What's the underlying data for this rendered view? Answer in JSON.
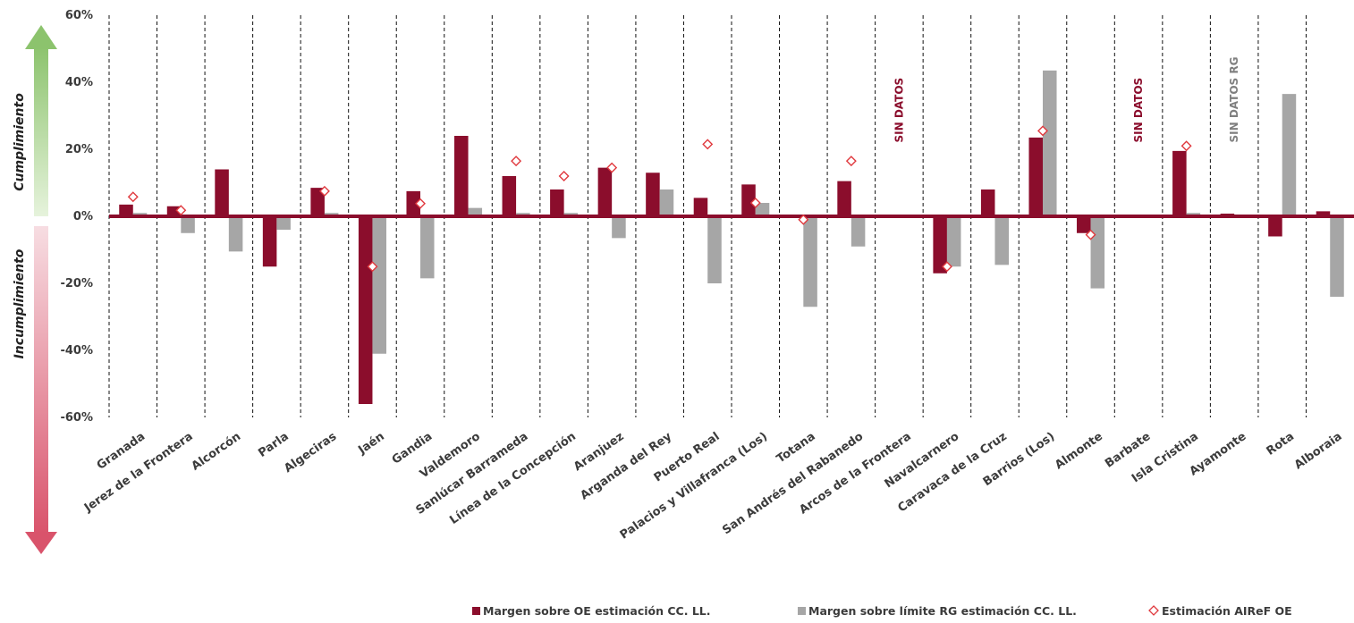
{
  "chart_data": {
    "type": "bar",
    "ylim": [
      -60,
      60
    ],
    "ytick_values": [
      -60,
      -40,
      -20,
      0,
      20,
      40,
      60
    ],
    "ytick_labels": [
      "-60%",
      "-40%",
      "-20%",
      "0%",
      "20%",
      "40%",
      "60%"
    ],
    "grid": "vertical dashed separators between categories",
    "legend_position": "bottom-right",
    "side_labels": {
      "positive": "Cumplimiento",
      "negative": "Incumplimiento"
    },
    "colors": {
      "oe": "#8b0d2c",
      "rg": "#a6a6a6",
      "airef": "#e0393e",
      "zero_line": "#8b0d2c",
      "arrow_up": "#8cc36d",
      "arrow_down": "#d9536b"
    },
    "categories": [
      "Granada",
      "Jerez de la Frontera",
      "Alcorcón",
      "Parla",
      "Algeciras",
      "Jaén",
      "Gandia",
      "Valdemoro",
      "Sanlúcar Barrameda",
      "Línea de la Concepción",
      "Aranjuez",
      "Arganda del Rey",
      "Puerto Real",
      "Palacios y Villafranca (Los)",
      "Totana",
      "San Andrés del Rabanedo",
      "Arcos de la Frontera",
      "Navalcarnero",
      "Caravaca de la Cruz",
      "Barrios (Los)",
      "Almonte",
      "Barbate",
      "Isla Cristina",
      "Ayamonte",
      "Rota",
      "Alboraia"
    ],
    "series": [
      {
        "name": "Margen sobre OE estimación CC. LL.",
        "kind": "bar",
        "values": [
          3.5,
          3,
          14,
          -15,
          8.5,
          -56,
          7.5,
          24,
          12,
          8,
          14.5,
          13,
          5.5,
          9.5,
          0,
          10.5,
          null,
          -17,
          8,
          23.5,
          -5,
          null,
          19.5,
          0.8,
          -6,
          1.5
        ]
      },
      {
        "name": "Margen sobre límite RG estimación CC. LL.",
        "kind": "bar",
        "values": [
          1,
          -5,
          -10.5,
          -4,
          1,
          -41,
          -18.5,
          2.5,
          1,
          1,
          -6.5,
          8,
          -20,
          4,
          -27,
          -9,
          null,
          -15,
          -14.5,
          43.5,
          -21.5,
          null,
          1,
          null,
          36.5,
          -24
        ]
      },
      {
        "name": "Estimación AIReF OE",
        "kind": "marker",
        "values": [
          5.8,
          1.8,
          null,
          null,
          7.5,
          -15,
          3.8,
          null,
          16.5,
          12,
          14.5,
          null,
          21.5,
          4,
          -1,
          16.5,
          null,
          -15,
          null,
          25.5,
          -5.5,
          null,
          21,
          null,
          null,
          null
        ]
      }
    ],
    "annotations": [
      {
        "text": "SIN DATOS",
        "category": "Arcos de la Frontera",
        "color": "#8b0d2c"
      },
      {
        "text": "SIN DATOS",
        "category": "Barbate",
        "color": "#8b0d2c"
      },
      {
        "text": "SIN DATOS RG",
        "category": "Ayamonte",
        "color": "#7f7f7f"
      }
    ]
  }
}
